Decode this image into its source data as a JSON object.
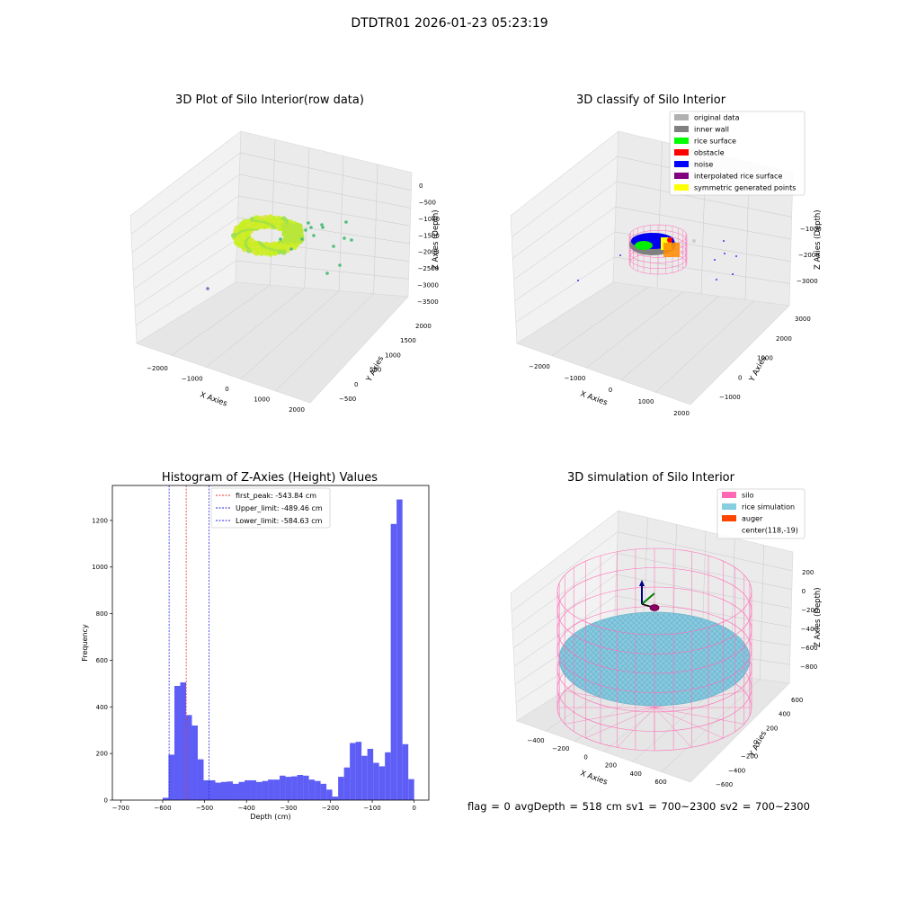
{
  "suptitle": "DTDTR01 2026-01-23 05:23:19",
  "footer": "flag = 0     avgDepth = 518 cm  sv1 = 700~2300  sv2 = 700~2300",
  "colors": {
    "hist_bar": "#5555f7",
    "peak_line": "#e8322f",
    "limit_line": "#2a2ae0",
    "silo": "#ff69b4",
    "rice_simulation": "#87cedf",
    "auger": "#ff4500"
  },
  "chart_data": [
    {
      "type": "scatter3d",
      "title": "3D Plot of Silo Interior(row data)",
      "xlabel": "X Axies",
      "ylabel": "Y Axies",
      "zlabel": "Z Axies (Depth)",
      "xticks": [
        "−2000",
        "−1000",
        "0",
        "1000",
        "2000"
      ],
      "yticks": [
        "−500",
        "0",
        "500",
        "1000",
        "1500",
        "2000"
      ],
      "zticks": [
        "0",
        "−500",
        "−1000",
        "−1500",
        "−2000",
        "−2500",
        "−3000",
        "−3500"
      ],
      "grid": true
    },
    {
      "type": "scatter3d",
      "title": "3D classify of Silo Interior",
      "xlabel": "X Axies",
      "ylabel": "Y Axies",
      "zlabel": "Z Axies (Depth)",
      "xticks": [
        "−2000",
        "−1000",
        "0",
        "1000",
        "2000"
      ],
      "yticks": [
        "−1000",
        "0",
        "1000",
        "2000",
        "3000"
      ],
      "zticks": [
        "−1000",
        "−2000",
        "−3000"
      ],
      "legend": [
        {
          "label": "original data",
          "color": "#b0b0b0"
        },
        {
          "label": "inner wall",
          "color": "#808080"
        },
        {
          "label": "rice surface",
          "color": "#00ff00"
        },
        {
          "label": "obstacle",
          "color": "#ff0000"
        },
        {
          "label": "noise",
          "color": "#0000ff"
        },
        {
          "label": "interpolated rice surface",
          "color": "#800080"
        },
        {
          "label": "symmetric generated points",
          "color": "#ffff00"
        }
      ],
      "legend_position": "top-right",
      "grid": true
    },
    {
      "type": "bar",
      "title": "Histogram of Z-Axies (Height) Values",
      "xlabel": "Depth (cm)",
      "ylabel": "Frequency",
      "xlim": [
        -720,
        35
      ],
      "ylim": [
        0,
        1350
      ],
      "xticks": [
        -700,
        -600,
        -500,
        -400,
        -300,
        -200,
        -100,
        0
      ],
      "xtick_labels": [
        "−700",
        "−600",
        "−500",
        "−400",
        "−300",
        "−200",
        "−100",
        "0"
      ],
      "yticks": [
        0,
        200,
        400,
        600,
        800,
        1000,
        1200
      ],
      "bin_width": 12.5,
      "bins": [
        [
          -600,
          10
        ],
        [
          -587.5,
          195
        ],
        [
          -575,
          490
        ],
        [
          -562.5,
          505
        ],
        [
          -550,
          365
        ],
        [
          -537.5,
          320
        ],
        [
          -525,
          175
        ],
        [
          -512.5,
          85
        ],
        [
          -500,
          85
        ],
        [
          -487.5,
          75
        ],
        [
          -475,
          78
        ],
        [
          -462.5,
          80
        ],
        [
          -450,
          70
        ],
        [
          -437.5,
          78
        ],
        [
          -425,
          85
        ],
        [
          -412.5,
          85
        ],
        [
          -400,
          78
        ],
        [
          -387.5,
          82
        ],
        [
          -375,
          88
        ],
        [
          -362.5,
          88
        ],
        [
          -350,
          105
        ],
        [
          -337.5,
          100
        ],
        [
          -325,
          102
        ],
        [
          -312.5,
          108
        ],
        [
          -300,
          105
        ],
        [
          -287.5,
          88
        ],
        [
          -275,
          82
        ],
        [
          -262.5,
          70
        ],
        [
          -250,
          45
        ],
        [
          -237.5,
          15
        ],
        [
          -225,
          100
        ],
        [
          -212.5,
          140
        ],
        [
          -200,
          245
        ],
        [
          -187.5,
          250
        ],
        [
          -175,
          190
        ],
        [
          -162.5,
          220
        ],
        [
          -150,
          160
        ],
        [
          -137.5,
          145
        ],
        [
          -125,
          205
        ],
        [
          -112.5,
          1185
        ],
        [
          -100,
          1290
        ],
        [
          -87.5,
          240
        ],
        [
          -75,
          90
        ]
      ],
      "vlines": [
        {
          "label": "first_peak: -543.84 cm",
          "x": -543.84,
          "style": "peak"
        },
        {
          "label": "Upper_limit: -489.46 cm",
          "x": -489.46,
          "style": "limit"
        },
        {
          "label": "Lower_limit: -584.63 cm",
          "x": -584.63,
          "style": "limit"
        }
      ],
      "legend_position": "top-left"
    },
    {
      "type": "surface3d",
      "title": "3D simulation of Silo Interior",
      "xlabel": "X Axies",
      "ylabel": "Y Axies",
      "zlabel": "Z Axies (Depth)",
      "xticks": [
        "−400",
        "−200",
        "0",
        "200",
        "400",
        "600"
      ],
      "yticks": [
        "−600",
        "−400",
        "−200",
        "0",
        "200",
        "400",
        "600"
      ],
      "zticks": [
        "200",
        "0",
        "−200",
        "−400",
        "−600",
        "−800"
      ],
      "legend": [
        {
          "label": "silo",
          "color": "#ff69b4"
        },
        {
          "label": "rice simulation",
          "color": "#87cedf"
        },
        {
          "label": "auger",
          "color": "#ff4500"
        },
        {
          "label": "center(118,-19)",
          "color": ""
        }
      ],
      "legend_position": "top-right",
      "grid": true
    }
  ]
}
